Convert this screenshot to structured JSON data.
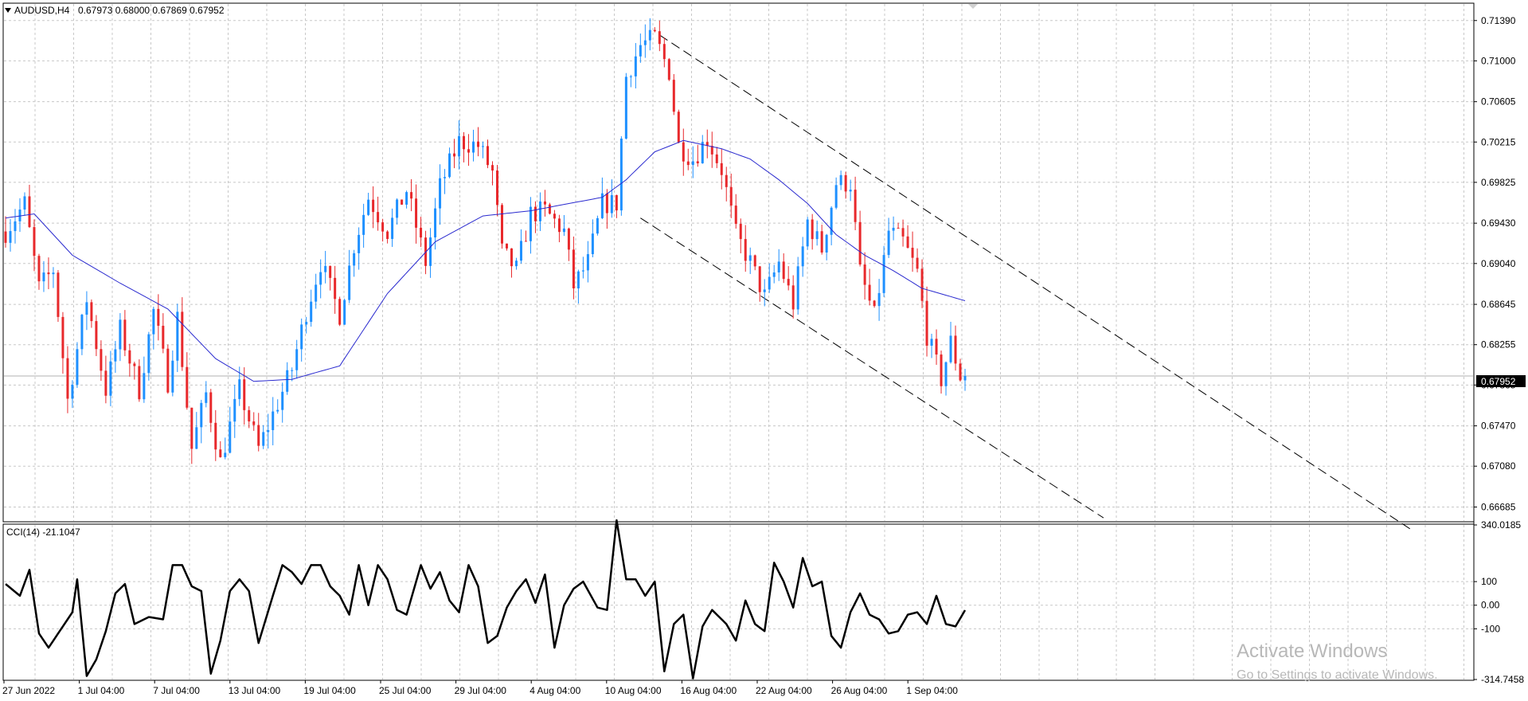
{
  "colors": {
    "bull": "#1E90FF",
    "bear": "#E8282B",
    "ma": "#2A2ACF",
    "grid": "#C8C8C8",
    "frame": "#000000",
    "cci": "#000000",
    "background": "#FFFFFF",
    "trendline": "#000000"
  },
  "window": {
    "symbol_timeframe": "AUDUSD,H4",
    "ohlc_readout": "0.67973 0.68000 0.67869 0.67952",
    "dropdown_icon": "triangle-down-icon"
  },
  "watermark": {
    "title": "Activate Windows",
    "subtitle": "Go to Settings to activate Windows."
  },
  "chart_data": [
    {
      "type": "candlestick",
      "symbol": "AUDUSD",
      "timeframe": "H4",
      "current_price": 0.67952,
      "current_price_label": "0.67952",
      "price_axis": {
        "ylim": [
          0.6655,
          0.7155
        ],
        "ticks": [
          "0.71390",
          "0.71000",
          "0.70605",
          "0.70215",
          "0.69825",
          "0.69430",
          "0.69040",
          "0.68645",
          "0.68255",
          "0.67865",
          "0.67470",
          "0.67080",
          "0.66685"
        ]
      },
      "time_axis": {
        "ticks": [
          "27 Jun 2022",
          "1 Jul 04:00",
          "7 Jul 04:00",
          "13 Jul 04:00",
          "19 Jul 04:00",
          "25 Jul 04:00",
          "29 Jul 04:00",
          "4 Aug 04:00",
          "10 Aug 04:00",
          "16 Aug 04:00",
          "22 Aug 04:00",
          "26 Aug 04:00",
          "1 Sep 04:00"
        ]
      },
      "grid": true,
      "close_path": [
        [
          0,
          0.6935
        ],
        [
          4,
          0.6962
        ],
        [
          7,
          0.688
        ],
        [
          10,
          0.6898
        ],
        [
          13,
          0.6772
        ],
        [
          17,
          0.687
        ],
        [
          21,
          0.6782
        ],
        [
          24,
          0.684
        ],
        [
          28,
          0.6782
        ],
        [
          31,
          0.6858
        ],
        [
          34,
          0.679
        ],
        [
          36,
          0.6852
        ],
        [
          39,
          0.6725
        ],
        [
          42,
          0.6778
        ],
        [
          45,
          0.6712
        ],
        [
          49,
          0.6782
        ],
        [
          53,
          0.6725
        ],
        [
          56,
          0.6758
        ],
        [
          60,
          0.6802
        ],
        [
          63,
          0.6858
        ],
        [
          66,
          0.6905
        ],
        [
          70,
          0.6855
        ],
        [
          73,
          0.6922
        ],
        [
          76,
          0.6968
        ],
        [
          80,
          0.6935
        ],
        [
          84,
          0.6975
        ],
        [
          88,
          0.6905
        ],
        [
          91,
          0.6978
        ],
        [
          95,
          0.7022
        ],
        [
          99,
          0.7018
        ],
        [
          102,
          0.6992
        ],
        [
          104,
          0.6915
        ],
        [
          107,
          0.6898
        ],
        [
          110,
          0.6952
        ],
        [
          113,
          0.6955
        ],
        [
          117,
          0.6935
        ],
        [
          119,
          0.6882
        ],
        [
          122,
          0.6905
        ],
        [
          125,
          0.6962
        ],
        [
          128,
          0.6962
        ],
        [
          130,
          0.7085
        ],
        [
          133,
          0.7115
        ],
        [
          136,
          0.7122
        ],
        [
          139,
          0.709
        ],
        [
          141,
          0.7018
        ],
        [
          144,
          0.7005
        ],
        [
          147,
          0.7025
        ],
        [
          150,
          0.6995
        ],
        [
          153,
          0.6932
        ],
        [
          156,
          0.6905
        ],
        [
          159,
          0.6872
        ],
        [
          162,
          0.6905
        ],
        [
          165,
          0.6865
        ],
        [
          168,
          0.6945
        ],
        [
          171,
          0.6918
        ],
        [
          174,
          0.6982
        ],
        [
          177,
          0.6982
        ],
        [
          179,
          0.6895
        ],
        [
          182,
          0.6852
        ],
        [
          185,
          0.6935
        ],
        [
          188,
          0.6925
        ],
        [
          191,
          0.6895
        ],
        [
          193,
          0.6835
        ],
        [
          196,
          0.6792
        ],
        [
          198,
          0.6828
        ],
        [
          200,
          0.6795
        ],
        [
          201,
          0.6795
        ]
      ],
      "moving_average": [
        [
          0,
          0.6948
        ],
        [
          6,
          0.6952
        ],
        [
          14,
          0.6912
        ],
        [
          24,
          0.6885
        ],
        [
          34,
          0.686
        ],
        [
          44,
          0.6812
        ],
        [
          52,
          0.679
        ],
        [
          60,
          0.6792
        ],
        [
          70,
          0.6805
        ],
        [
          80,
          0.6875
        ],
        [
          90,
          0.6925
        ],
        [
          100,
          0.695
        ],
        [
          110,
          0.6955
        ],
        [
          118,
          0.6962
        ],
        [
          125,
          0.6968
        ],
        [
          130,
          0.6985
        ],
        [
          136,
          0.7012
        ],
        [
          142,
          0.7023
        ],
        [
          150,
          0.7015
        ],
        [
          156,
          0.7005
        ],
        [
          162,
          0.6985
        ],
        [
          168,
          0.6962
        ],
        [
          174,
          0.6932
        ],
        [
          180,
          0.6912
        ],
        [
          186,
          0.6897
        ],
        [
          192,
          0.688
        ],
        [
          201,
          0.6868
        ]
      ],
      "channel_lines": [
        {
          "from": [
            137,
            0.7125
          ],
          "to": [
            295,
            0.6645
          ]
        },
        {
          "from": [
            133,
            0.6948
          ],
          "to": [
            230,
            0.6658
          ]
        }
      ]
    },
    {
      "type": "line",
      "name": "CCI(14) -21.1047",
      "ylim": [
        -314.7458,
        340.0185
      ],
      "ticks": [
        "340.0185",
        "100",
        "0.00",
        "-100",
        "-314.7458"
      ],
      "values_path": [
        [
          0,
          90
        ],
        [
          3,
          40
        ],
        [
          5,
          150
        ],
        [
          7,
          -120
        ],
        [
          9,
          -180
        ],
        [
          12,
          -90
        ],
        [
          14,
          -30
        ],
        [
          15,
          110
        ],
        [
          17,
          -300
        ],
        [
          19,
          -230
        ],
        [
          21,
          -110
        ],
        [
          23,
          50
        ],
        [
          25,
          90
        ],
        [
          27,
          -80
        ],
        [
          30,
          -50
        ],
        [
          33,
          -60
        ],
        [
          35,
          170
        ],
        [
          37,
          170
        ],
        [
          39,
          80
        ],
        [
          41,
          60
        ],
        [
          43,
          -290
        ],
        [
          45,
          -150
        ],
        [
          47,
          60
        ],
        [
          49,
          110
        ],
        [
          51,
          60
        ],
        [
          53,
          -160
        ],
        [
          56,
          40
        ],
        [
          58,
          170
        ],
        [
          60,
          140
        ],
        [
          62,
          90
        ],
        [
          64,
          170
        ],
        [
          66,
          170
        ],
        [
          68,
          80
        ],
        [
          70,
          40
        ],
        [
          72,
          -40
        ],
        [
          74,
          170
        ],
        [
          76,
          0
        ],
        [
          78,
          170
        ],
        [
          80,
          110
        ],
        [
          82,
          -20
        ],
        [
          84,
          -40
        ],
        [
          87,
          170
        ],
        [
          89,
          70
        ],
        [
          91,
          140
        ],
        [
          93,
          20
        ],
        [
          95,
          -30
        ],
        [
          97,
          170
        ],
        [
          99,
          80
        ],
        [
          101,
          -160
        ],
        [
          103,
          -130
        ],
        [
          105,
          -10
        ],
        [
          107,
          60
        ],
        [
          109,
          110
        ],
        [
          111,
          10
        ],
        [
          113,
          130
        ],
        [
          115,
          -180
        ],
        [
          117,
          0
        ],
        [
          119,
          70
        ],
        [
          121,
          100
        ],
        [
          124,
          -10
        ],
        [
          126,
          -20
        ],
        [
          128,
          360
        ],
        [
          130,
          110
        ],
        [
          132,
          110
        ],
        [
          134,
          40
        ],
        [
          136,
          100
        ],
        [
          138,
          -280
        ],
        [
          140,
          -80
        ],
        [
          142,
          -40
        ],
        [
          144,
          -310
        ],
        [
          146,
          -90
        ],
        [
          148,
          -20
        ],
        [
          151,
          -80
        ],
        [
          153,
          -150
        ],
        [
          155,
          20
        ],
        [
          157,
          -80
        ],
        [
          159,
          -110
        ],
        [
          161,
          180
        ],
        [
          163,
          100
        ],
        [
          165,
          -10
        ],
        [
          167,
          200
        ],
        [
          169,
          80
        ],
        [
          171,
          100
        ],
        [
          173,
          -130
        ],
        [
          175,
          -180
        ],
        [
          177,
          -30
        ],
        [
          179,
          50
        ],
        [
          181,
          -40
        ],
        [
          183,
          -60
        ],
        [
          185,
          -120
        ],
        [
          187,
          -110
        ],
        [
          189,
          -40
        ],
        [
          191,
          -30
        ],
        [
          193,
          -80
        ],
        [
          195,
          40
        ],
        [
          197,
          -80
        ],
        [
          199,
          -90
        ],
        [
          201,
          -21
        ]
      ]
    }
  ]
}
